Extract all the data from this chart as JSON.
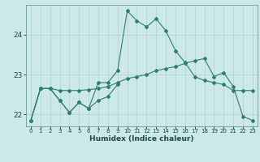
{
  "xlabel": "Humidex (Indice chaleur)",
  "x": [
    0,
    1,
    2,
    3,
    4,
    5,
    6,
    7,
    8,
    9,
    10,
    11,
    12,
    13,
    14,
    15,
    16,
    17,
    18,
    19,
    20,
    21,
    22,
    23
  ],
  "line1_y": [
    21.85,
    22.65,
    22.65,
    22.35,
    22.05,
    22.3,
    22.15,
    22.8,
    22.8,
    23.1,
    24.6,
    24.35,
    24.2,
    24.4,
    24.1,
    23.6,
    23.3,
    22.95,
    22.85,
    22.8,
    22.75,
    22.6,
    22.6,
    22.6
  ],
  "line2_x": [
    0,
    1,
    2,
    3,
    4,
    5,
    6,
    7,
    8,
    9
  ],
  "line2_y": [
    21.85,
    22.65,
    22.65,
    22.35,
    22.05,
    22.3,
    22.15,
    22.35,
    22.45,
    22.75
  ],
  "line3_y": [
    21.85,
    22.65,
    22.65,
    22.6,
    22.6,
    22.6,
    22.62,
    22.65,
    22.7,
    22.8,
    22.9,
    22.95,
    23.0,
    23.1,
    23.15,
    23.2,
    23.28,
    23.35,
    23.4,
    22.95,
    23.05,
    22.7,
    21.95,
    21.85
  ],
  "line_color": "#2e7d6e",
  "bg_color": "#cde8e8",
  "grid_color": "#b0d4d4",
  "ylim_min": 21.7,
  "ylim_max": 24.75,
  "yticks": [
    22,
    23,
    24
  ],
  "xtick_labels": [
    "0",
    "1",
    "2",
    "3",
    "4",
    "5",
    "6",
    "7",
    "8",
    "9",
    "10",
    "11",
    "12",
    "13",
    "14",
    "15",
    "16",
    "17",
    "18",
    "19",
    "20",
    "21",
    "22",
    "23"
  ]
}
